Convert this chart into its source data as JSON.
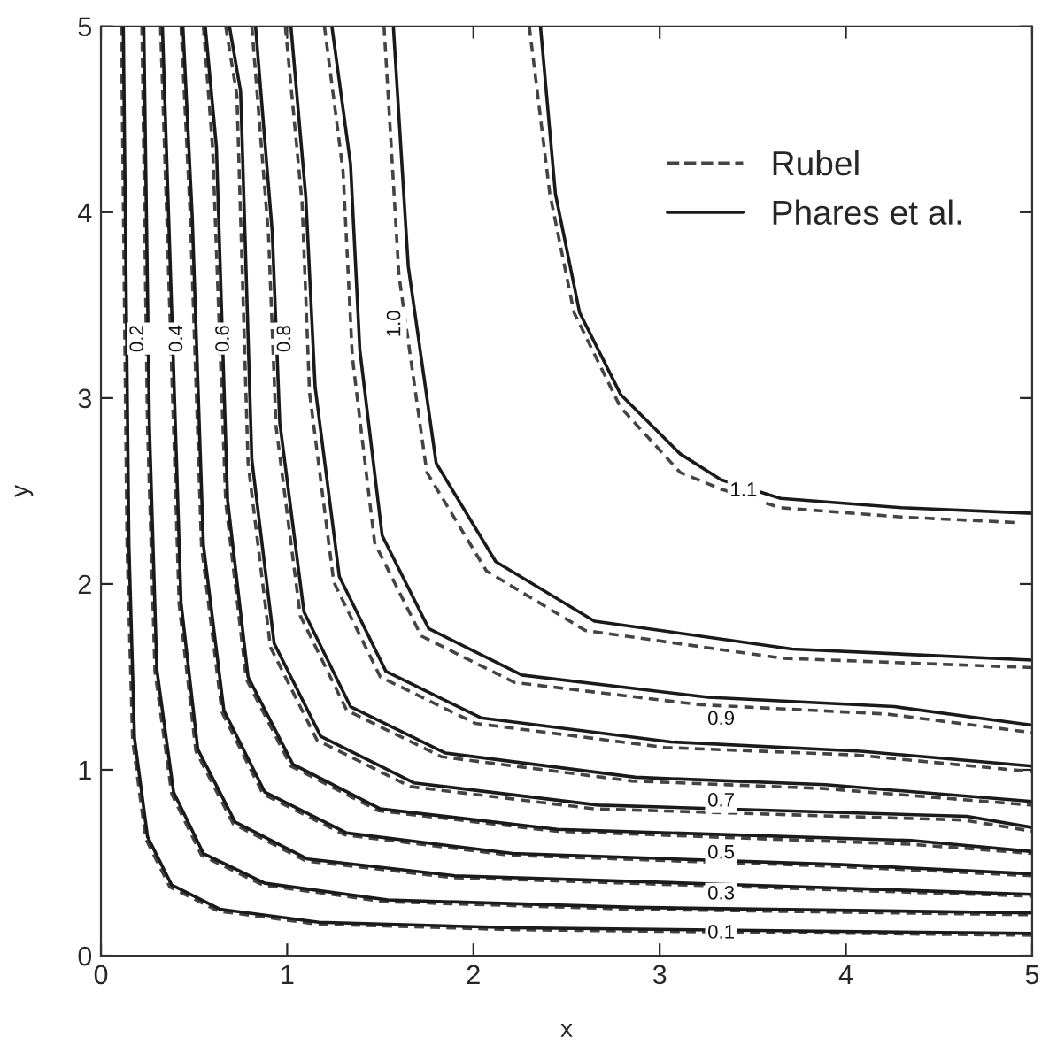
{
  "chart_data": {
    "type": "line",
    "xlabel": "x",
    "ylabel": "y",
    "xlim": [
      0,
      5
    ],
    "ylim": [
      0,
      5
    ],
    "xticks": [
      0,
      1,
      2,
      3,
      4,
      5
    ],
    "yticks": [
      0,
      1,
      2,
      3,
      4,
      5
    ],
    "grid": false,
    "legend": "top right",
    "marker": "none",
    "series": [
      {
        "name": "Rubel",
        "color": "#444444",
        "line_style": "dashed",
        "x": [
          0.11,
          0.14,
          0.17,
          0.24,
          0.37,
          0.63,
          1.16,
          2.21,
          5,
          null,
          0.22,
          0.25,
          0.29,
          0.38,
          0.54,
          0.87,
          1.53,
          2.85,
          5,
          null,
          0.32,
          0.37,
          0.42,
          0.51,
          0.71,
          1.1,
          1.89,
          3.46,
          5,
          null,
          0.43,
          0.48,
          0.54,
          0.65,
          0.87,
          1.31,
          2.2,
          3.97,
          5,
          null,
          0.55,
          0.6,
          0.67,
          0.78,
          1.02,
          1.49,
          2.44,
          4.34,
          5,
          null,
          0.67,
          0.73,
          0.79,
          0.91,
          1.16,
          1.66,
          2.65,
          4.63,
          5,
          null,
          0.81,
          0.9,
          0.94,
          1.07,
          1.32,
          1.83,
          2.85,
          3.87,
          5,
          null,
          0.99,
          1.08,
          1.12,
          1.25,
          1.5,
          2.01,
          3.03,
          4.05,
          5,
          null,
          1.2,
          1.3,
          1.35,
          1.47,
          1.72,
          2.22,
          3.22,
          4.22,
          5,
          null,
          1.52,
          1.6,
          1.75,
          2.07,
          2.6,
          3.66,
          5,
          null,
          2.3,
          2.41,
          2.54,
          2.79,
          3.11,
          3.33,
          3.65,
          4.3,
          4.92
        ],
        "values": [
          5,
          2.21,
          1.16,
          0.63,
          0.37,
          0.24,
          0.17,
          0.14,
          0.11,
          null,
          5,
          2.85,
          1.53,
          0.87,
          0.54,
          0.38,
          0.29,
          0.25,
          0.22,
          null,
          5,
          3.46,
          1.89,
          1.1,
          0.71,
          0.51,
          0.42,
          0.37,
          0.32,
          null,
          5,
          3.97,
          2.2,
          1.31,
          0.87,
          0.65,
          0.54,
          0.48,
          0.43,
          null,
          5,
          4.34,
          2.44,
          1.49,
          1.02,
          0.78,
          0.67,
          0.6,
          0.55,
          null,
          5,
          4.63,
          2.65,
          1.66,
          1.16,
          0.91,
          0.79,
          0.73,
          0.67,
          null,
          5,
          3.87,
          2.85,
          1.83,
          1.32,
          1.07,
          0.94,
          0.9,
          0.81,
          null,
          5,
          4.05,
          3.03,
          2.01,
          1.5,
          1.25,
          1.12,
          1.08,
          0.99,
          null,
          5,
          4.22,
          3.22,
          2.22,
          1.72,
          1.47,
          1.35,
          1.3,
          1.2,
          null,
          5,
          3.66,
          2.6,
          2.07,
          1.75,
          1.6,
          1.55,
          null,
          5,
          4.1,
          3.46,
          2.95,
          2.6,
          2.51,
          2.41,
          2.36,
          2.33
        ]
      },
      {
        "name": "Phares et al.",
        "color": "#1a1a1a",
        "line_style": "solid",
        "x": [
          0.12,
          0.15,
          0.18,
          0.25,
          0.38,
          0.64,
          1.17,
          2.22,
          5,
          null,
          0.23,
          0.26,
          0.3,
          0.39,
          0.55,
          0.88,
          1.54,
          2.86,
          5,
          null,
          0.33,
          0.38,
          0.43,
          0.52,
          0.72,
          1.11,
          1.9,
          3.47,
          5,
          null,
          0.44,
          0.49,
          0.55,
          0.66,
          0.88,
          1.32,
          2.21,
          3.98,
          5,
          null,
          0.56,
          0.62,
          0.68,
          0.79,
          1.03,
          1.5,
          2.45,
          4.35,
          5,
          null,
          0.69,
          0.75,
          0.81,
          0.93,
          1.18,
          1.68,
          2.67,
          4.65,
          5,
          null,
          0.83,
          0.92,
          0.96,
          1.09,
          1.34,
          1.85,
          2.87,
          3.89,
          5,
          null,
          1.02,
          1.1,
          1.15,
          1.28,
          1.53,
          2.04,
          3.06,
          4.08,
          5,
          null,
          1.24,
          1.34,
          1.39,
          1.51,
          1.76,
          2.26,
          3.26,
          4.26,
          5,
          null,
          1.57,
          1.65,
          1.8,
          2.12,
          2.65,
          3.71,
          5,
          null,
          2.36,
          2.44,
          2.57,
          2.79,
          3.11,
          3.33,
          3.65,
          4.3,
          5
        ],
        "values": [
          5,
          2.22,
          1.17,
          0.64,
          0.38,
          0.25,
          0.18,
          0.15,
          0.12,
          null,
          5,
          2.86,
          1.54,
          0.88,
          0.55,
          0.39,
          0.3,
          0.26,
          0.23,
          null,
          5,
          3.47,
          1.9,
          1.11,
          0.72,
          0.52,
          0.43,
          0.38,
          0.33,
          null,
          5,
          3.98,
          2.21,
          1.32,
          0.88,
          0.66,
          0.55,
          0.49,
          0.44,
          null,
          5,
          4.35,
          2.45,
          1.5,
          1.03,
          0.79,
          0.68,
          0.62,
          0.56,
          null,
          5,
          4.65,
          2.67,
          1.68,
          1.18,
          0.93,
          0.81,
          0.75,
          0.69,
          null,
          5,
          3.89,
          2.87,
          1.85,
          1.34,
          1.09,
          0.96,
          0.92,
          0.83,
          null,
          5,
          4.08,
          3.06,
          2.04,
          1.53,
          1.28,
          1.15,
          1.1,
          1.02,
          null,
          5,
          4.26,
          3.26,
          2.26,
          1.76,
          1.51,
          1.39,
          1.34,
          1.24,
          null,
          5,
          3.71,
          2.65,
          2.12,
          1.8,
          1.65,
          1.59,
          null,
          5,
          4.1,
          3.46,
          3.02,
          2.7,
          2.56,
          2.46,
          2.41,
          2.38
        ]
      }
    ],
    "annotations": [
      {
        "text": "0.1",
        "x": 3.33,
        "y": 0.12
      },
      {
        "text": "0.2",
        "x": 0.2,
        "y": 3.32
      },
      {
        "text": "0.3",
        "x": 3.33,
        "y": 0.33
      },
      {
        "text": "0.4",
        "x": 0.41,
        "y": 3.32
      },
      {
        "text": "0.5",
        "x": 3.33,
        "y": 0.55
      },
      {
        "text": "0.6",
        "x": 0.66,
        "y": 3.32
      },
      {
        "text": "0.7",
        "x": 3.33,
        "y": 0.83
      },
      {
        "text": "0.8",
        "x": 0.99,
        "y": 3.32
      },
      {
        "text": "0.9",
        "x": 3.33,
        "y": 1.27
      },
      {
        "text": "1.0",
        "x": 1.58,
        "y": 3.4
      },
      {
        "text": "1.1",
        "x": 3.45,
        "y": 2.5
      }
    ]
  }
}
